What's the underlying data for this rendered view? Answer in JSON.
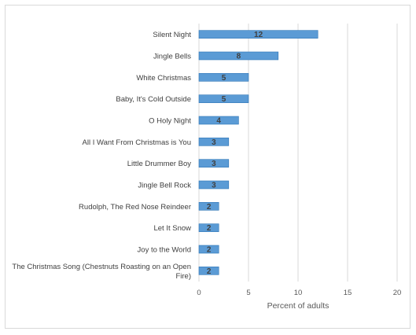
{
  "chart_data": {
    "type": "bar",
    "orientation": "horizontal",
    "categories": [
      "Silent Night",
      "Jingle Bells",
      "White Christmas",
      "Baby, It's Cold Outside",
      "O Holy Night",
      "All I Want From Christmas is You",
      "Little Drummer Boy",
      "Jingle Bell Rock",
      "Rudolph, The Red Nose Reindeer",
      "Let It Snow",
      "Joy to the World",
      "The Christmas Song (Chestnuts Roasting on an Open Fire)"
    ],
    "category_lines": [
      [
        "Silent Night"
      ],
      [
        "Jingle Bells"
      ],
      [
        "White Christmas"
      ],
      [
        "Baby, It's Cold Outside"
      ],
      [
        "O Holy Night"
      ],
      [
        "All I Want From Christmas is You"
      ],
      [
        "Little Drummer Boy"
      ],
      [
        "Jingle Bell Rock"
      ],
      [
        "Rudolph, The Red Nose Reindeer"
      ],
      [
        "Let It Snow"
      ],
      [
        "Joy to the World"
      ],
      [
        "The Christmas Song (Chestnuts Roasting on an Open",
        "Fire)"
      ]
    ],
    "values": [
      12,
      8,
      5,
      5,
      4,
      3,
      3,
      3,
      2,
      2,
      2,
      2
    ],
    "xlabel": "Percent of adults",
    "ylabel": "",
    "xlim": [
      0,
      20
    ],
    "xticks": [
      0,
      5,
      10,
      15,
      20
    ],
    "grid": true,
    "legend": "none",
    "bar_color": "#5b9bd5",
    "bar_edge_color": "#2e75b6",
    "grid_color": "#d9d9d9"
  }
}
